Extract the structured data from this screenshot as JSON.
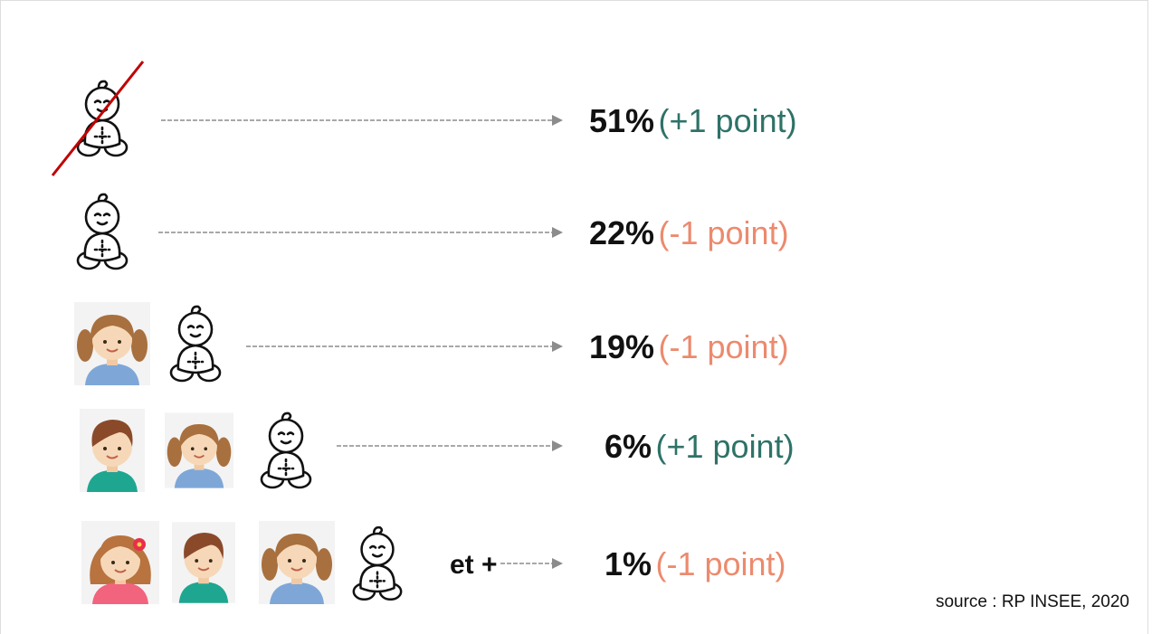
{
  "rows": [
    {
      "percent": "51%",
      "change": "(+1 point)",
      "change_color": "#2e7268"
    },
    {
      "percent": "22%",
      "change": "(-1 point)",
      "change_color": "#ec8a6e"
    },
    {
      "percent": "19%",
      "change": "(-1 point)",
      "change_color": "#ec8a6e"
    },
    {
      "percent": "6%",
      "change": "(+1 point)",
      "change_color": "#2e7268"
    },
    {
      "percent": "1%",
      "change": "(-1 point)",
      "change_color": "#ec8a6e"
    }
  ],
  "more_label": "et +",
  "source": "source : RP INSEE, 2020"
}
